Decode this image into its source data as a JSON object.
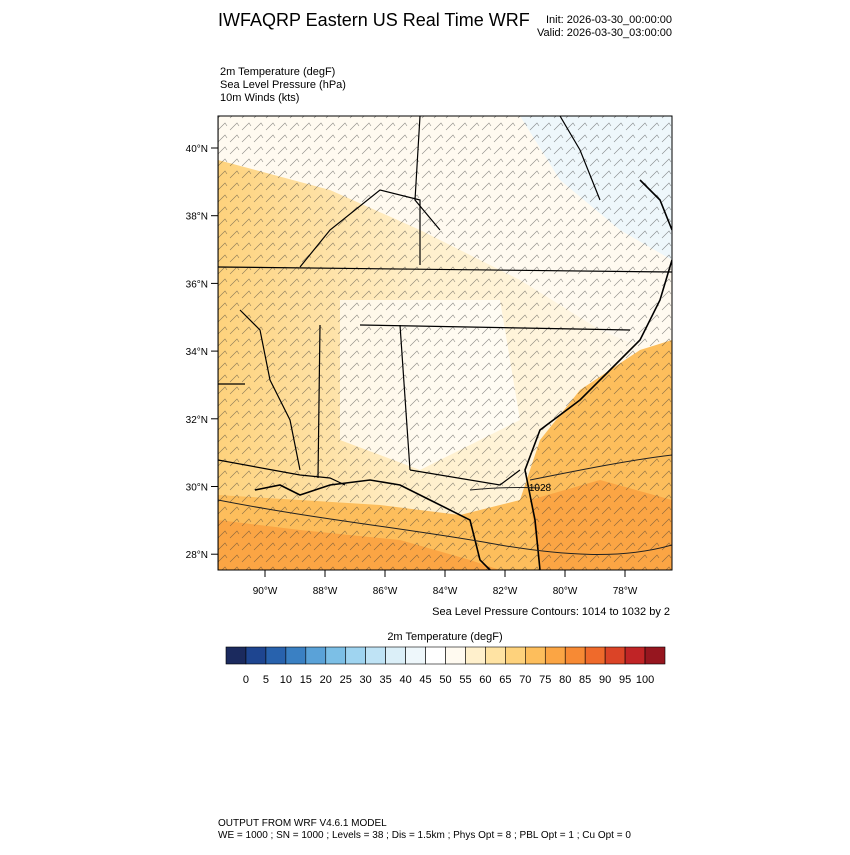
{
  "header": {
    "title": "IWFAQRP Eastern US Real Time WRF",
    "init": "Init: 2026-03-30_00:00:00",
    "valid": "Valid: 2026-03-30_03:00:00"
  },
  "fields": [
    "2m Temperature   (degF)",
    "Sea Level Pressure   (hPa)",
    "10m Winds   (kts)"
  ],
  "map": {
    "lat_ticks": [
      "40°N",
      "38°N",
      "36°N",
      "34°N",
      "32°N",
      "30°N",
      "28°N"
    ],
    "lon_ticks": [
      "90°W",
      "88°W",
      "86°W",
      "84°W",
      "82°W",
      "80°W",
      "78°W"
    ],
    "contour_label": "1028",
    "contour_note": "Sea Level Pressure Contours: 1014 to 1032 by 2"
  },
  "colorbar": {
    "title": "2m Temperature  (degF)",
    "colors": [
      "#1b2a5e",
      "#1e4590",
      "#2862ad",
      "#3a80c3",
      "#5aa2d8",
      "#7cbfe6",
      "#9fd4f0",
      "#bfe3f5",
      "#dbeff8",
      "#eef7fb",
      "#ffffff",
      "#fffaf0",
      "#fff0cc",
      "#ffe3a3",
      "#fed27c",
      "#fdbe5c",
      "#fba544",
      "#f78a34",
      "#ef6a2b",
      "#db4427",
      "#c02426",
      "#96161f"
    ],
    "labels": [
      0,
      5,
      10,
      15,
      20,
      25,
      30,
      35,
      40,
      45,
      50,
      55,
      60,
      65,
      70,
      75,
      80,
      85,
      90,
      95,
      100
    ]
  },
  "footer": {
    "line1": "OUTPUT FROM WRF V4.6.1 MODEL",
    "line2": "WE = 1000 ; SN = 1000 ; Levels = 38 ; Dis = 1.5km ; Phys Opt = 8 ; PBL Opt = 1 ; Cu Opt = 0"
  }
}
